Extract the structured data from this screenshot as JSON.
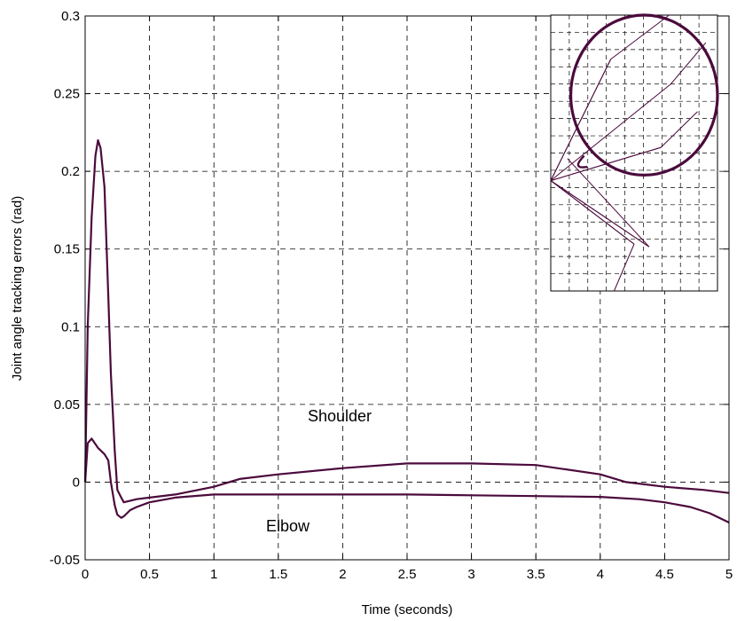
{
  "chart_data": {
    "type": "line",
    "title": "",
    "xlabel": "Time (seconds)",
    "ylabel": "Joint angle tracking errors (rad)",
    "xlim": [
      0,
      5
    ],
    "ylim": [
      -0.05,
      0.3
    ],
    "grid": true,
    "line_color": "#4b0a3c",
    "xticks": [
      "0",
      "0.5",
      "1",
      "1.5",
      "2",
      "2.5",
      "3",
      "3.5",
      "4",
      "4.5",
      "5"
    ],
    "yticks": [
      "-0.05",
      "0",
      "0.05",
      "0.1",
      "0.15",
      "0.2",
      "0.25",
      "0.3"
    ],
    "annotations": [
      {
        "text": "Shoulder",
        "x": 2.05,
        "y": 0.04
      },
      {
        "text": "Elbow",
        "x": 1.4,
        "y": -0.027
      }
    ],
    "series": [
      {
        "x": [
          0,
          0.02,
          0.05,
          0.08,
          0.1,
          0.12,
          0.15,
          0.18,
          0.2,
          0.23,
          0.25,
          0.28,
          0.3,
          0.35,
          0.4,
          0.5,
          0.7,
          1.0,
          1.2,
          1.5,
          2.0,
          2.5,
          3.0,
          3.5,
          4.0,
          4.2,
          4.5,
          4.8,
          5.0
        ],
        "y": [
          0,
          0.1,
          0.17,
          0.21,
          0.22,
          0.215,
          0.19,
          0.12,
          0.07,
          0.02,
          -0.005,
          -0.01,
          -0.013,
          -0.012,
          -0.011,
          -0.01,
          -0.008,
          -0.003,
          0.002,
          0.005,
          0.009,
          0.012,
          0.012,
          0.011,
          0.005,
          0.0,
          -0.003,
          -0.005,
          -0.007
        ]
      },
      {
        "x": [
          0,
          0.02,
          0.05,
          0.1,
          0.15,
          0.18,
          0.2,
          0.23,
          0.25,
          0.28,
          0.3,
          0.35,
          0.4,
          0.5,
          0.7,
          1.0,
          1.5,
          2.0,
          2.5,
          3.0,
          3.5,
          4.0,
          4.3,
          4.5,
          4.7,
          4.85,
          5.0
        ],
        "y": [
          0,
          0.025,
          0.028,
          0.022,
          0.018,
          0.014,
          0.0,
          -0.015,
          -0.021,
          -0.023,
          -0.022,
          -0.018,
          -0.016,
          -0.013,
          -0.01,
          -0.008,
          -0.008,
          -0.008,
          -0.008,
          -0.0085,
          -0.009,
          -0.0095,
          -0.011,
          -0.013,
          -0.016,
          -0.02,
          -0.026
        ]
      }
    ],
    "inset": {
      "description_free": true,
      "circle": {
        "cx": 0.56,
        "cy": 0.29,
        "r": 0.22
      },
      "base": [
        0.0,
        0.6
      ],
      "elbows": [
        [
          0.5,
          0.83
        ],
        [
          0.36,
          0.16
        ],
        [
          0.66,
          0.48
        ],
        [
          0.59,
          0.84
        ],
        [
          0.72,
          0.25
        ]
      ],
      "ends": [
        [
          0.38,
          1.0
        ],
        [
          0.71,
          0.0
        ],
        [
          0.88,
          0.35
        ],
        [
          0.1,
          0.52
        ],
        [
          0.93,
          0.1
        ],
        [
          0.18,
          0.27
        ],
        [
          0.93,
          0.1
        ]
      ]
    }
  }
}
